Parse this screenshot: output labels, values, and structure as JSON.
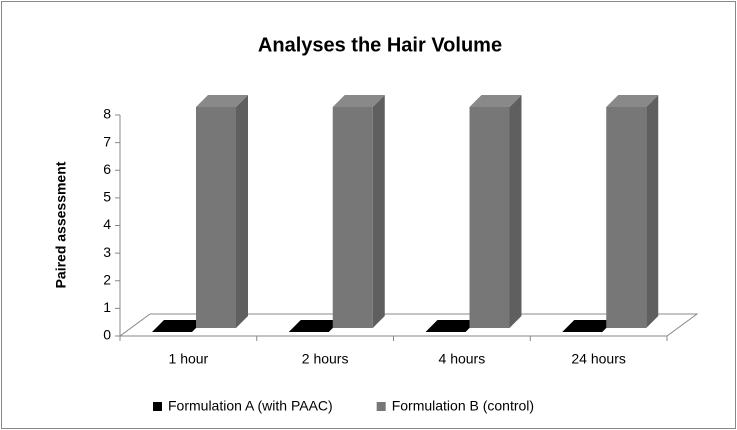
{
  "chart_data": {
    "type": "bar3d",
    "title": "Analyses the Hair Volume",
    "y_label": "Paired assessment",
    "categories": [
      "1 hour",
      "2 hours",
      "4 hours",
      "24 hours"
    ],
    "series": [
      {
        "name": "Formulation A (with PAAC)",
        "color": "#000000",
        "values": [
          0,
          0,
          0,
          0
        ]
      },
      {
        "name": "Formulation B (control)",
        "color": "#777777",
        "values": [
          8,
          8,
          8,
          8
        ]
      }
    ],
    "ylim": [
      0,
      8
    ],
    "yticks": [
      0,
      1,
      2,
      3,
      4,
      5,
      6,
      7,
      8
    ],
    "legend": "bottom"
  }
}
